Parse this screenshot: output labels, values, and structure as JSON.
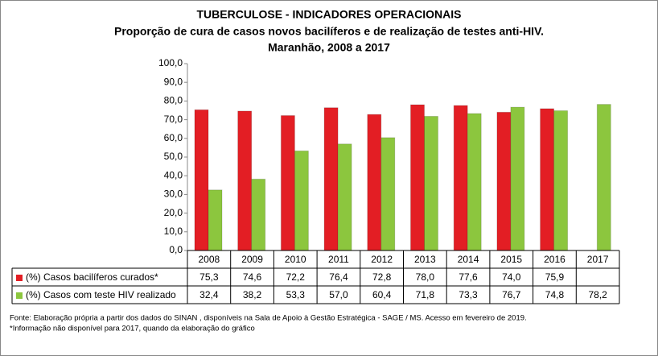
{
  "chart_data": {
    "type": "bar",
    "title": "TUBERCULOSE - INDICADORES OPERACIONAIS",
    "subtitle": "Proporção de cura de casos novos bacilíferos e de realização de testes anti-HIV.",
    "subtitle2": "Maranhão, 2008 a 2017",
    "categories": [
      "2008",
      "2009",
      "2010",
      "2011",
      "2012",
      "2013",
      "2014",
      "2015",
      "2016",
      "2017"
    ],
    "series": [
      {
        "name": "(%) Casos bacilíferos curados*",
        "color": "#e31e24",
        "values": [
          75.3,
          74.6,
          72.2,
          76.4,
          72.8,
          78.0,
          77.6,
          74.0,
          75.9,
          null
        ],
        "value_labels": [
          "75,3",
          "74,6",
          "72,2",
          "76,4",
          "72,8",
          "78,0",
          "77,6",
          "74,0",
          "75,9",
          null
        ]
      },
      {
        "name": "(%) Casos com teste HIV realizado",
        "color": "#8cc63e",
        "values": [
          32.4,
          38.2,
          53.3,
          57.0,
          60.4,
          71.8,
          73.3,
          76.7,
          74.8,
          78.2
        ],
        "value_labels": [
          "32,4",
          "38,2",
          "53,3",
          "57,0",
          "60,4",
          "71,8",
          "73,3",
          "76,7",
          "74,8",
          "78,2"
        ]
      }
    ],
    "ylim": [
      0,
      100
    ],
    "yticks": [
      {
        "value": 0,
        "label": "0,0"
      },
      {
        "value": 10,
        "label": "10,0"
      },
      {
        "value": 20,
        "label": "20,0"
      },
      {
        "value": 30,
        "label": "30,0"
      },
      {
        "value": 40,
        "label": "40,0"
      },
      {
        "value": 50,
        "label": "50,0"
      },
      {
        "value": 60,
        "label": "60,0"
      },
      {
        "value": 70,
        "label": "70,0"
      },
      {
        "value": 80,
        "label": "80,0"
      },
      {
        "value": 90,
        "label": "90,0"
      },
      {
        "value": 100,
        "label": "100,0"
      }
    ],
    "grid": false,
    "notes": [
      "Fonte: Elaboração própria a partir dos dados do SINAN , disponíveis na Sala de  Apoio  à Gestão Estratégica - SAGE / MS. Acesso  em fevereiro de 2019.",
      "*Informação não  disponível  para 2017,  quando da elaboração do gráfico"
    ]
  }
}
